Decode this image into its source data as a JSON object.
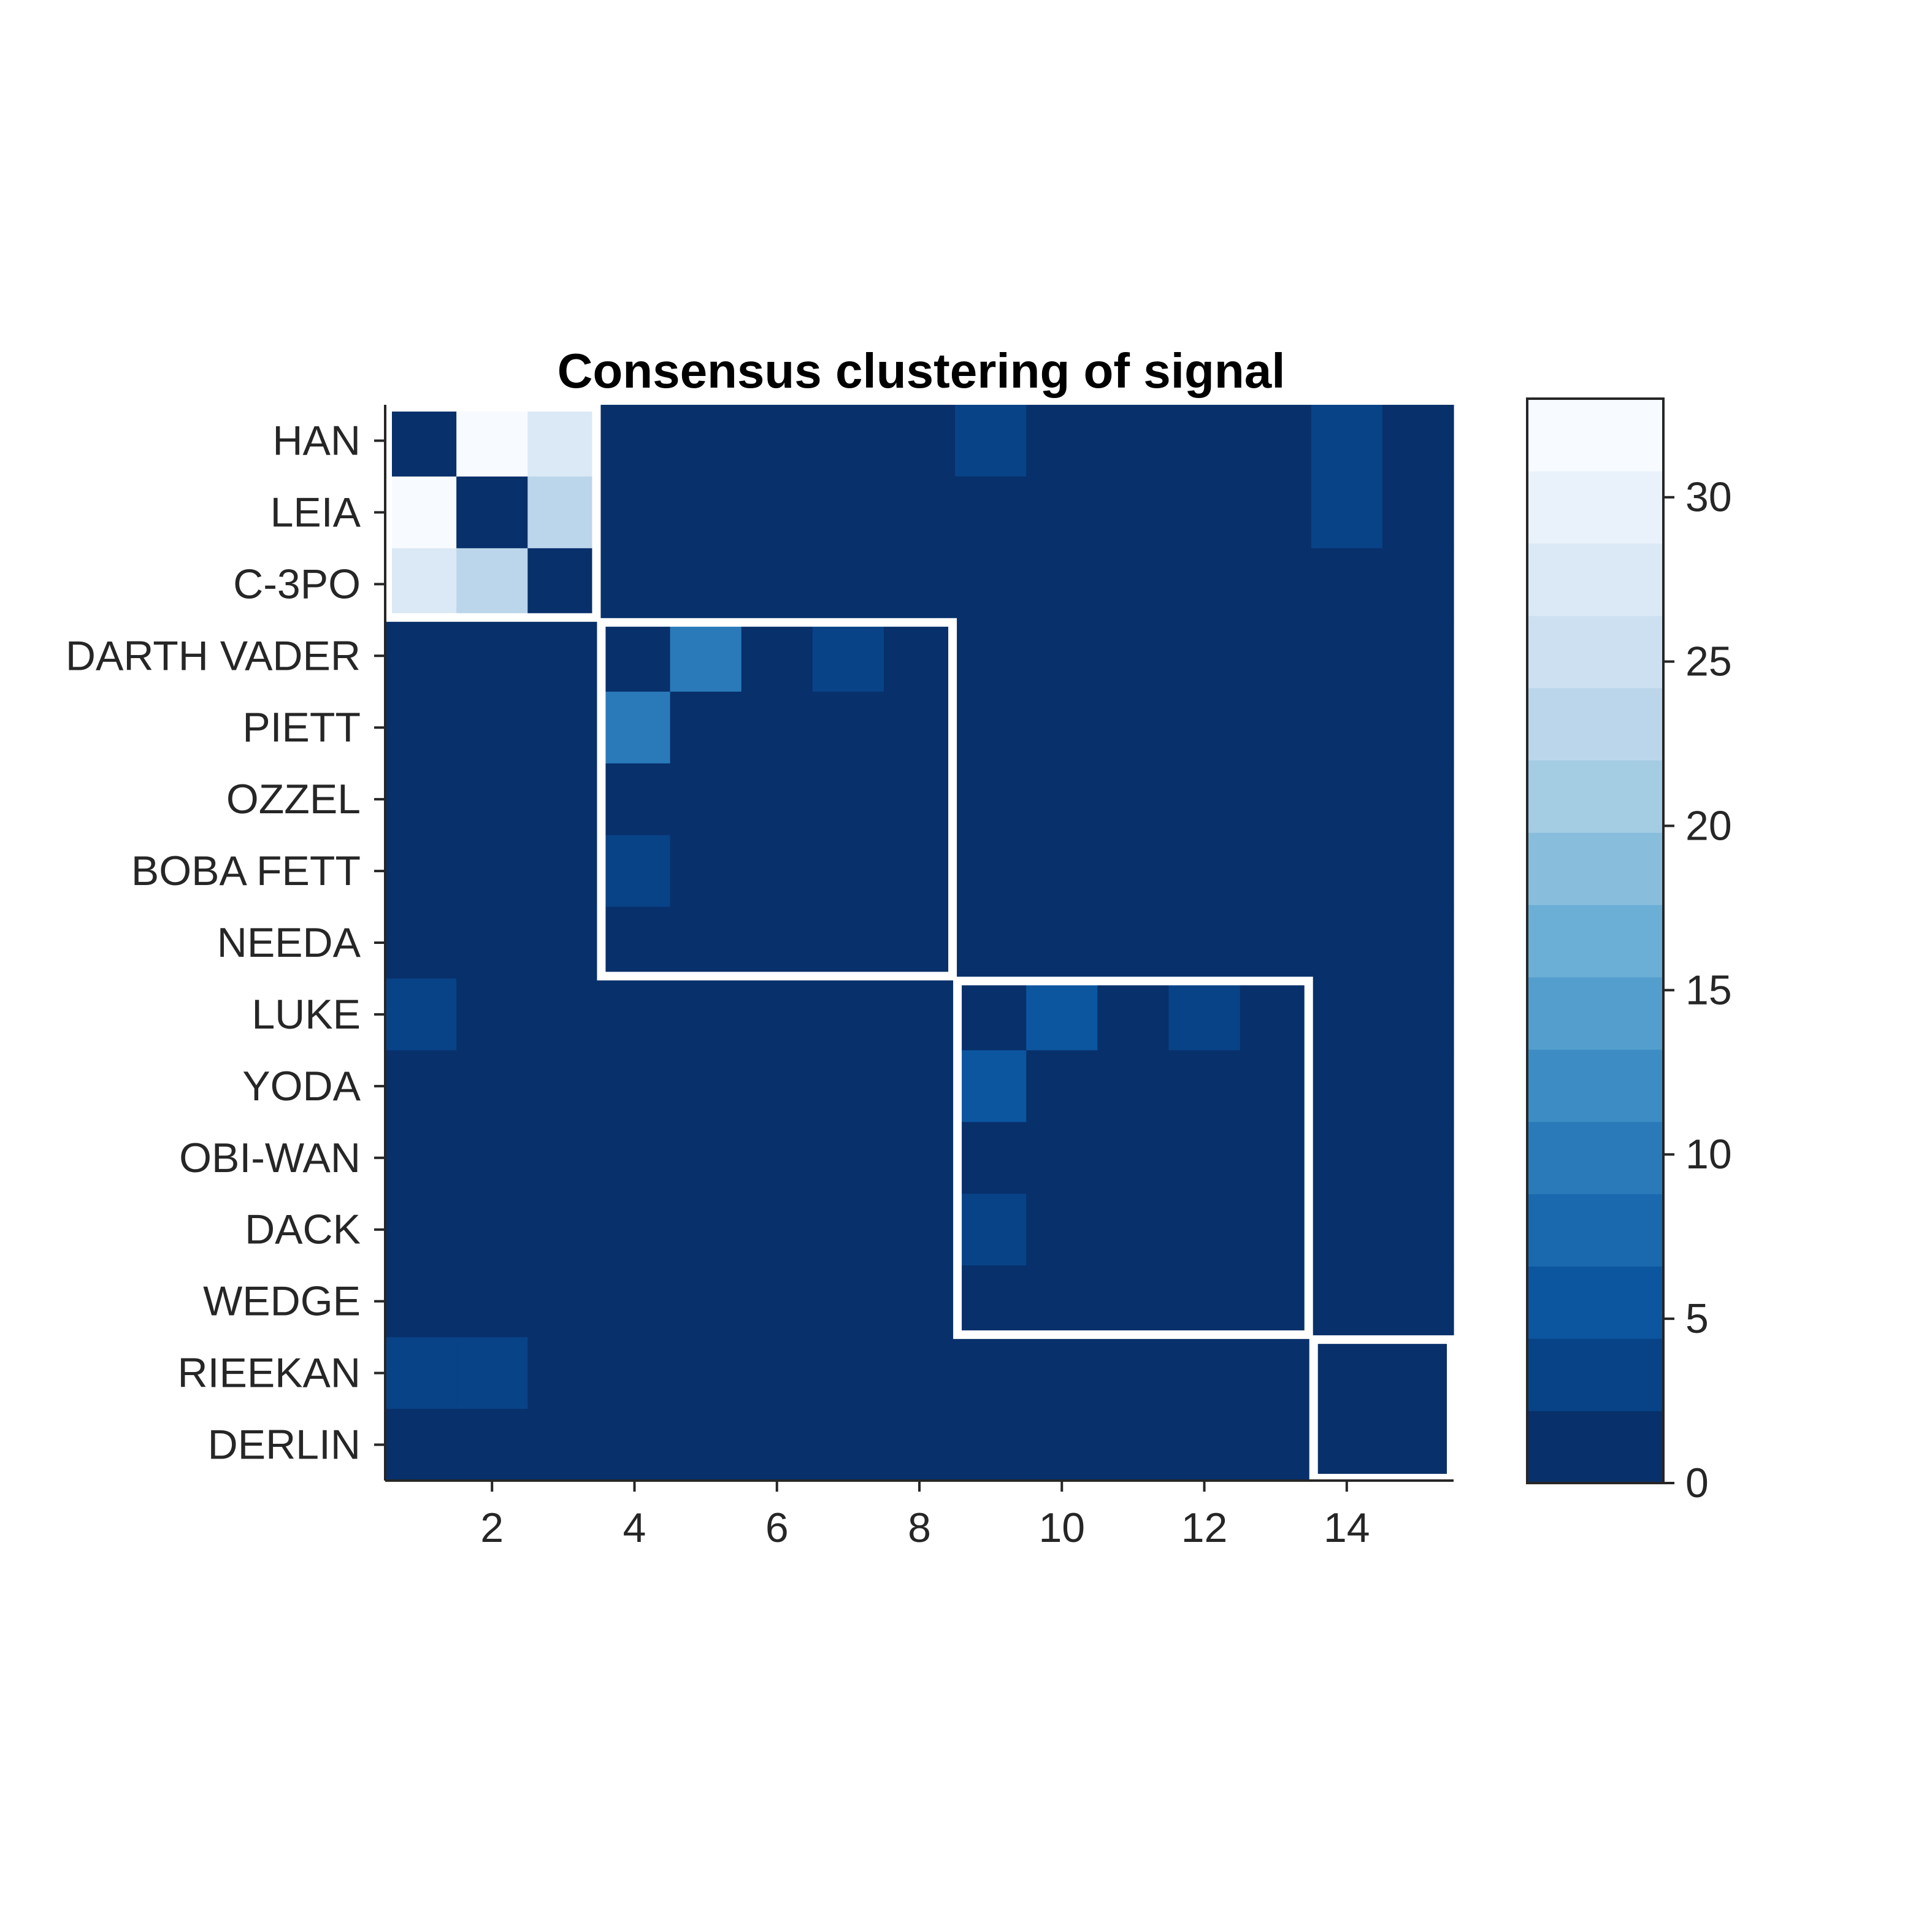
{
  "chart_data": {
    "type": "heatmap",
    "title": "Consensus clustering of signal",
    "row_labels": [
      "HAN",
      "LEIA",
      "C-3PO",
      "DARTH VADER",
      "PIETT",
      "OZZEL",
      "BOBA FETT",
      "NEEDA",
      "LUKE",
      "YODA",
      "OBI-WAN",
      "DACK",
      "WEDGE",
      "RIEEKAN",
      "DERLIN"
    ],
    "x_ticks": [
      2,
      4,
      6,
      8,
      10,
      12,
      14
    ],
    "xlim": [
      0.5,
      15.5
    ],
    "values": [
      [
        0,
        33,
        28,
        0,
        0,
        0,
        0,
        0,
        4,
        0,
        0,
        0,
        0,
        4,
        0
      ],
      [
        33,
        0,
        24,
        0,
        0,
        0,
        0,
        0,
        0,
        0,
        0,
        0,
        0,
        4,
        0
      ],
      [
        28,
        24,
        0,
        0,
        0,
        0,
        0,
        0,
        0,
        0,
        0,
        0,
        0,
        0,
        0
      ],
      [
        0,
        0,
        0,
        0,
        9,
        0,
        4,
        0,
        0,
        0,
        0,
        0,
        0,
        0,
        0
      ],
      [
        0,
        0,
        0,
        9,
        0,
        0,
        0,
        0,
        0,
        0,
        0,
        0,
        0,
        0,
        0
      ],
      [
        0,
        0,
        0,
        0,
        0,
        0,
        0,
        0,
        0,
        0,
        0,
        0,
        0,
        0,
        0
      ],
      [
        0,
        0,
        0,
        4,
        0,
        0,
        0,
        0,
        0,
        0,
        0,
        0,
        0,
        0,
        0
      ],
      [
        0,
        0,
        0,
        0,
        0,
        0,
        0,
        0,
        0,
        0,
        0,
        0,
        0,
        0,
        0
      ],
      [
        4,
        0,
        0,
        0,
        0,
        0,
        0,
        0,
        0,
        5,
        0,
        4,
        0,
        0,
        0
      ],
      [
        0,
        0,
        0,
        0,
        0,
        0,
        0,
        0,
        5,
        0,
        0,
        0,
        0,
        0,
        0
      ],
      [
        0,
        0,
        0,
        0,
        0,
        0,
        0,
        0,
        0,
        0,
        0,
        0,
        0,
        0,
        0
      ],
      [
        0,
        0,
        0,
        0,
        0,
        0,
        0,
        0,
        4,
        0,
        0,
        0,
        0,
        0,
        0
      ],
      [
        0,
        0,
        0,
        0,
        0,
        0,
        0,
        0,
        0,
        0,
        0,
        0,
        0,
        0,
        0
      ],
      [
        4,
        4,
        0,
        0,
        0,
        0,
        0,
        0,
        0,
        0,
        0,
        0,
        0,
        0,
        0
      ],
      [
        0,
        0,
        0,
        0,
        0,
        0,
        0,
        0,
        0,
        0,
        0,
        0,
        0,
        0,
        0
      ]
    ],
    "clusters": [
      {
        "start": 1,
        "end": 3
      },
      {
        "start": 4,
        "end": 8
      },
      {
        "start": 9,
        "end": 13
      },
      {
        "start": 14,
        "end": 15
      }
    ],
    "colorbar": {
      "range": [
        0,
        33
      ],
      "ticks": [
        0,
        5,
        10,
        15,
        20,
        25,
        30
      ],
      "levels": 15,
      "colormap": "Blues_r"
    },
    "colors": {
      "colormap_stops": [
        "#08306b",
        "#08519c",
        "#2171b5",
        "#4292c6",
        "#6baed6",
        "#9ecae1",
        "#c6dbef",
        "#deebf7",
        "#f7fbff"
      ],
      "cluster_outline": "#ffffff",
      "axis": "#262626"
    }
  }
}
